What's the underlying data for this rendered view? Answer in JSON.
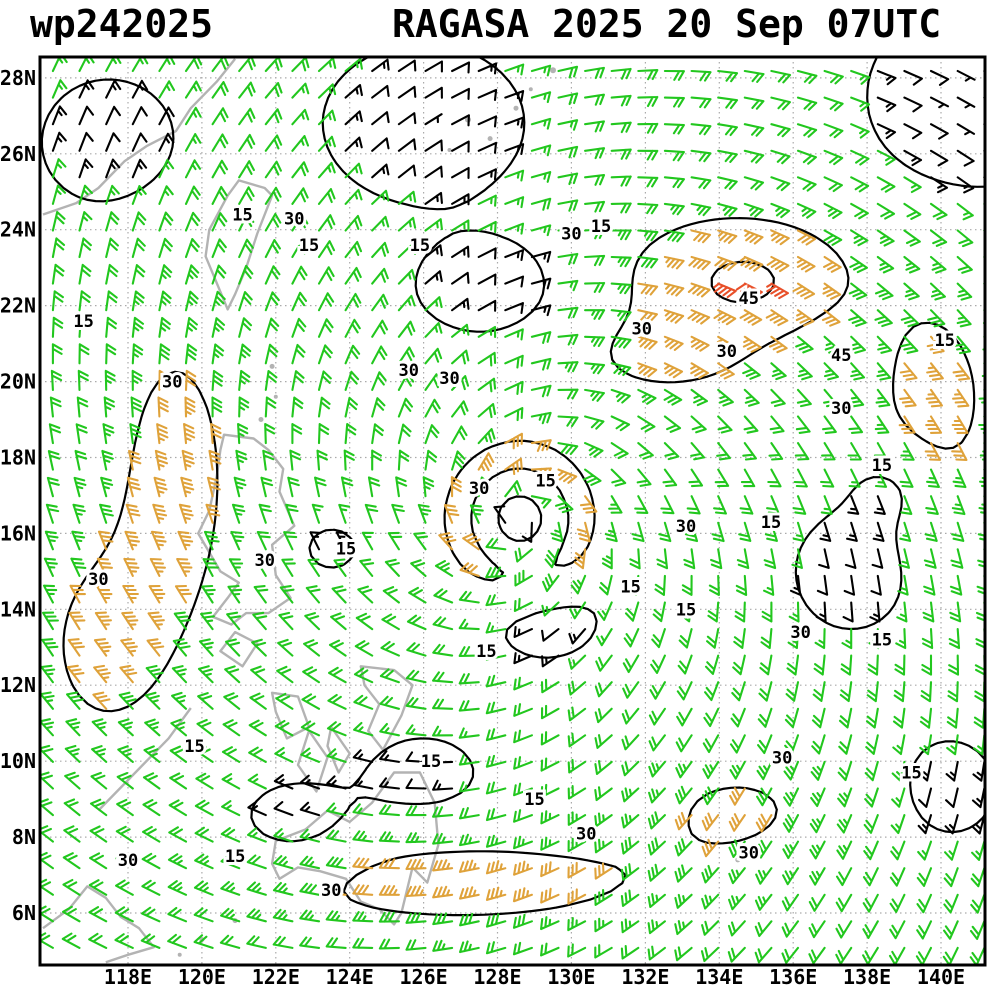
{
  "header": {
    "storm_id": "wp242025",
    "title": "RAGASA 2025 20 Sep 07UTC"
  },
  "chart_data": {
    "type": "wind-barb-map",
    "title": "RAGASA 2025 20 Sep 07UTC",
    "storm": {
      "id": "wp242025",
      "name": "RAGASA",
      "date": "2025 20 Sep",
      "time": "07UTC",
      "center_lon": 128.6,
      "center_lat": 16.4
    },
    "x_axis": {
      "range": [
        115.62,
        141.19
      ],
      "tick_values": [
        118,
        120,
        122,
        124,
        126,
        128,
        130,
        132,
        134,
        136,
        138,
        140
      ],
      "tick_labels": [
        "118E",
        "120E",
        "122E",
        "124E",
        "126E",
        "128E",
        "130E",
        "132E",
        "134E",
        "136E",
        "138E",
        "140E"
      ]
    },
    "y_axis": {
      "range": [
        4.63,
        28.55
      ],
      "tick_values": [
        6,
        8,
        10,
        12,
        14,
        16,
        18,
        20,
        22,
        24,
        26,
        28
      ],
      "tick_labels": [
        "6N",
        "8N",
        "10N",
        "12N",
        "14N",
        "16N",
        "18N",
        "20N",
        "22N",
        "24N",
        "26N",
        "28N"
      ]
    },
    "grid": {
      "style": "dotted",
      "color": "#aaaaaa"
    },
    "isotach_levels_kt": [
      15,
      30,
      45
    ],
    "wind_speed_colors": {
      "under_15": "#000000",
      "15_to_30": "#22c71e",
      "30_to_45": "#dfa23a",
      "over_45": "#e8502a"
    },
    "contour_color": "#000000",
    "coastline_color": "#b3b3b3",
    "typhoon_symbol_color": "#f04545",
    "contour_labels": [
      {
        "t": "15",
        "lon": 121.1,
        "lat": 24.4
      },
      {
        "t": "30",
        "lon": 122.5,
        "lat": 24.3
      },
      {
        "t": "15",
        "lon": 122.9,
        "lat": 23.6
      },
      {
        "t": "15",
        "lon": 125.9,
        "lat": 23.6
      },
      {
        "t": "30",
        "lon": 130.0,
        "lat": 23.9
      },
      {
        "t": "15",
        "lon": 130.8,
        "lat": 24.1
      },
      {
        "t": "45",
        "lon": 134.8,
        "lat": 22.2
      },
      {
        "t": "30",
        "lon": 131.9,
        "lat": 21.4
      },
      {
        "t": "30",
        "lon": 134.2,
        "lat": 20.8
      },
      {
        "t": "45",
        "lon": 137.3,
        "lat": 20.7
      },
      {
        "t": "15",
        "lon": 140.1,
        "lat": 21.1
      },
      {
        "t": "15",
        "lon": 116.8,
        "lat": 21.6
      },
      {
        "t": "30",
        "lon": 119.2,
        "lat": 20.0
      },
      {
        "t": "30",
        "lon": 125.6,
        "lat": 20.3
      },
      {
        "t": "30",
        "lon": 126.7,
        "lat": 20.1
      },
      {
        "t": "30",
        "lon": 137.3,
        "lat": 19.3
      },
      {
        "t": "30",
        "lon": 127.5,
        "lat": 17.2
      },
      {
        "t": "15",
        "lon": 129.3,
        "lat": 17.4
      },
      {
        "t": "15",
        "lon": 138.4,
        "lat": 17.8
      },
      {
        "t": "30",
        "lon": 133.1,
        "lat": 16.2
      },
      {
        "t": "15",
        "lon": 135.4,
        "lat": 16.3
      },
      {
        "t": "30",
        "lon": 117.2,
        "lat": 14.8
      },
      {
        "t": "30",
        "lon": 121.7,
        "lat": 15.3
      },
      {
        "t": "15",
        "lon": 123.9,
        "lat": 15.6
      },
      {
        "t": "15",
        "lon": 131.6,
        "lat": 14.6
      },
      {
        "t": "15",
        "lon": 133.1,
        "lat": 14.0
      },
      {
        "t": "30",
        "lon": 136.2,
        "lat": 13.4
      },
      {
        "t": "15",
        "lon": 138.4,
        "lat": 13.2
      },
      {
        "t": "15",
        "lon": 127.7,
        "lat": 12.9
      },
      {
        "t": "15",
        "lon": 119.8,
        "lat": 10.4
      },
      {
        "t": "15",
        "lon": 126.2,
        "lat": 10.0
      },
      {
        "t": "30",
        "lon": 135.7,
        "lat": 10.1
      },
      {
        "t": "15",
        "lon": 139.2,
        "lat": 9.7
      },
      {
        "t": "15",
        "lon": 129.0,
        "lat": 9.0
      },
      {
        "t": "30",
        "lon": 130.4,
        "lat": 8.1
      },
      {
        "t": "30",
        "lon": 134.8,
        "lat": 7.6
      },
      {
        "t": "30",
        "lon": 118.0,
        "lat": 7.4
      },
      {
        "t": "15",
        "lon": 120.9,
        "lat": 7.5
      },
      {
        "t": "30",
        "lon": 123.5,
        "lat": 6.6
      }
    ],
    "wind_model": {
      "base_kt": 19,
      "inflow_deg": 18,
      "ring": {
        "radius_deg": 1.6,
        "width_deg": 0.9,
        "amp_kt": 14
      },
      "eye": {
        "width_deg": 0.9,
        "amp_kt": -12
      },
      "bumps": [
        {
          "lon": 134.5,
          "lat": 22.8,
          "sx": 3.2,
          "sy": 1.7,
          "amp": 24
        },
        {
          "lon": 134.8,
          "lat": 22.5,
          "sx": 1.2,
          "sy": 0.8,
          "amp": 6
        },
        {
          "lon": 139.8,
          "lat": 19.5,
          "sx": 1.8,
          "sy": 3.0,
          "amp": 16
        },
        {
          "lon": 119.3,
          "lat": 17.5,
          "sx": 1.8,
          "sy": 4.5,
          "amp": 16
        },
        {
          "lon": 117.3,
          "lat": 13.0,
          "sx": 2.0,
          "sy": 3.0,
          "amp": 14
        },
        {
          "lon": 127.0,
          "lat": 6.8,
          "sx": 6.5,
          "sy": 1.4,
          "amp": 16
        },
        {
          "lon": 134.5,
          "lat": 8.8,
          "sx": 3.0,
          "sy": 1.6,
          "amp": 12
        },
        {
          "lon": 132.5,
          "lat": 20.6,
          "sx": 2.6,
          "sy": 1.2,
          "amp": 13
        },
        {
          "lon": 140.8,
          "lat": 27.5,
          "sx": 2.5,
          "sy": 2.2,
          "amp": -14
        },
        {
          "lon": 126.0,
          "lat": 26.8,
          "sx": 2.6,
          "sy": 2.0,
          "amp": -12
        },
        {
          "lon": 127.8,
          "lat": 22.5,
          "sx": 2.2,
          "sy": 1.4,
          "amp": -9
        },
        {
          "lon": 138.8,
          "lat": 17.3,
          "sx": 1.3,
          "sy": 1.2,
          "amp": -10
        },
        {
          "lon": 137.6,
          "lat": 15.0,
          "sx": 1.6,
          "sy": 1.6,
          "amp": -10
        },
        {
          "lon": 129.3,
          "lat": 13.8,
          "sx": 1.6,
          "sy": 1.2,
          "amp": -9
        },
        {
          "lon": 126.0,
          "lat": 9.6,
          "sx": 1.7,
          "sy": 1.2,
          "amp": -8
        },
        {
          "lon": 140.2,
          "lat": 9.3,
          "sx": 1.5,
          "sy": 1.5,
          "amp": -8
        },
        {
          "lon": 122.6,
          "lat": 8.2,
          "sx": 1.8,
          "sy": 1.3,
          "amp": -10
        },
        {
          "lon": 123.5,
          "lat": 15.6,
          "sx": 1.0,
          "sy": 0.8,
          "amp": -6
        },
        {
          "lon": 117.5,
          "lat": 26.3,
          "sx": 2.2,
          "sy": 2.0,
          "amp": -8
        }
      ],
      "barb_spacing_deg_lon": 0.72,
      "barb_spacing_deg_lat": 0.7
    },
    "coastlines": [
      {
        "name": "china-coast",
        "closed": false,
        "pts": [
          [
            115.7,
            24.4
          ],
          [
            116.6,
            24.7
          ],
          [
            117.2,
            25.1
          ],
          [
            117.9,
            25.8
          ],
          [
            118.5,
            26.2
          ],
          [
            119.3,
            26.6
          ],
          [
            119.7,
            27.2
          ],
          [
            120.4,
            27.9
          ],
          [
            120.9,
            28.5
          ]
        ]
      },
      {
        "name": "taiwan",
        "closed": true,
        "pts": [
          [
            121.0,
            25.3
          ],
          [
            121.7,
            25.1
          ],
          [
            121.9,
            24.9
          ],
          [
            121.5,
            23.9
          ],
          [
            121.2,
            23.0
          ],
          [
            120.9,
            22.3
          ],
          [
            120.7,
            21.9
          ],
          [
            120.4,
            22.6
          ],
          [
            120.1,
            23.3
          ],
          [
            120.2,
            24.0
          ],
          [
            120.7,
            24.9
          ]
        ]
      },
      {
        "name": "luzon",
        "closed": true,
        "pts": [
          [
            120.6,
            18.6
          ],
          [
            121.4,
            18.5
          ],
          [
            121.8,
            18.2
          ],
          [
            122.2,
            17.7
          ],
          [
            122.1,
            17.1
          ],
          [
            122.5,
            16.2
          ],
          [
            121.9,
            15.7
          ],
          [
            122.0,
            14.9
          ],
          [
            122.4,
            14.3
          ],
          [
            121.8,
            13.9
          ],
          [
            121.2,
            13.9
          ],
          [
            120.8,
            13.6
          ],
          [
            120.3,
            13.8
          ],
          [
            120.7,
            14.3
          ],
          [
            121.0,
            14.7
          ],
          [
            120.5,
            15.0
          ],
          [
            119.9,
            16.0
          ],
          [
            120.2,
            16.6
          ],
          [
            120.4,
            17.5
          ],
          [
            120.5,
            18.2
          ]
        ]
      },
      {
        "name": "mindoro",
        "closed": true,
        "pts": [
          [
            120.9,
            13.4
          ],
          [
            121.5,
            13.1
          ],
          [
            121.1,
            12.5
          ],
          [
            120.5,
            12.9
          ]
        ]
      },
      {
        "name": "panay",
        "closed": true,
        "pts": [
          [
            121.9,
            11.8
          ],
          [
            122.6,
            11.7
          ],
          [
            122.9,
            10.9
          ],
          [
            122.3,
            10.6
          ],
          [
            122.0,
            11.3
          ]
        ]
      },
      {
        "name": "negros",
        "closed": true,
        "pts": [
          [
            122.9,
            10.8
          ],
          [
            123.4,
            10.1
          ],
          [
            123.1,
            9.2
          ],
          [
            122.6,
            9.9
          ]
        ]
      },
      {
        "name": "cebu",
        "closed": true,
        "pts": [
          [
            123.5,
            10.9
          ],
          [
            124.0,
            10.2
          ],
          [
            123.7,
            9.7
          ],
          [
            123.4,
            10.4
          ]
        ]
      },
      {
        "name": "samar-leyte",
        "closed": true,
        "pts": [
          [
            124.3,
            12.5
          ],
          [
            125.2,
            12.4
          ],
          [
            125.7,
            12.0
          ],
          [
            125.4,
            11.2
          ],
          [
            124.9,
            10.3
          ],
          [
            124.5,
            10.8
          ],
          [
            124.8,
            11.5
          ],
          [
            124.4,
            12.0
          ]
        ]
      },
      {
        "name": "palawan",
        "closed": false,
        "pts": [
          [
            119.7,
            11.4
          ],
          [
            119.1,
            10.6
          ],
          [
            118.4,
            9.9
          ],
          [
            117.7,
            9.2
          ],
          [
            117.2,
            8.7
          ]
        ]
      },
      {
        "name": "mindanao",
        "closed": true,
        "pts": [
          [
            122.0,
            7.9
          ],
          [
            122.8,
            8.2
          ],
          [
            123.4,
            8.7
          ],
          [
            124.0,
            8.4
          ],
          [
            124.6,
            8.9
          ],
          [
            125.2,
            9.7
          ],
          [
            125.9,
            9.7
          ],
          [
            126.3,
            8.9
          ],
          [
            126.4,
            7.8
          ],
          [
            126.1,
            6.8
          ],
          [
            125.7,
            7.2
          ],
          [
            125.4,
            6.0
          ],
          [
            125.2,
            5.7
          ],
          [
            124.8,
            6.1
          ],
          [
            124.3,
            6.3
          ],
          [
            123.9,
            6.9
          ],
          [
            123.2,
            7.1
          ],
          [
            122.6,
            7.2
          ],
          [
            122.1,
            6.9
          ],
          [
            121.9,
            7.3
          ]
        ]
      },
      {
        "name": "borneo",
        "closed": false,
        "pts": [
          [
            115.7,
            5.6
          ],
          [
            116.4,
            6.1
          ],
          [
            116.9,
            6.7
          ],
          [
            117.4,
            6.4
          ],
          [
            117.8,
            5.9
          ],
          [
            118.3,
            5.6
          ],
          [
            118.7,
            5.1
          ],
          [
            118.0,
            4.9
          ],
          [
            117.4,
            4.7
          ]
        ]
      }
    ],
    "island_dots": [
      [
        127.2,
        26.9,
        3
      ],
      [
        127.8,
        26.4,
        2.5
      ],
      [
        128.5,
        27.2,
        2.5
      ],
      [
        129.5,
        28.2,
        3
      ],
      [
        126.7,
        26.1,
        2
      ],
      [
        128.9,
        27.7,
        2
      ],
      [
        121.9,
        20.4,
        2.5
      ],
      [
        122.0,
        19.6,
        2
      ],
      [
        121.6,
        19.0,
        2.5
      ],
      [
        120.0,
        5.3,
        2.5
      ],
      [
        120.9,
        5.8,
        2.5
      ],
      [
        119.4,
        4.9,
        2
      ],
      [
        134.5,
        7.4,
        2.5
      ]
    ]
  }
}
